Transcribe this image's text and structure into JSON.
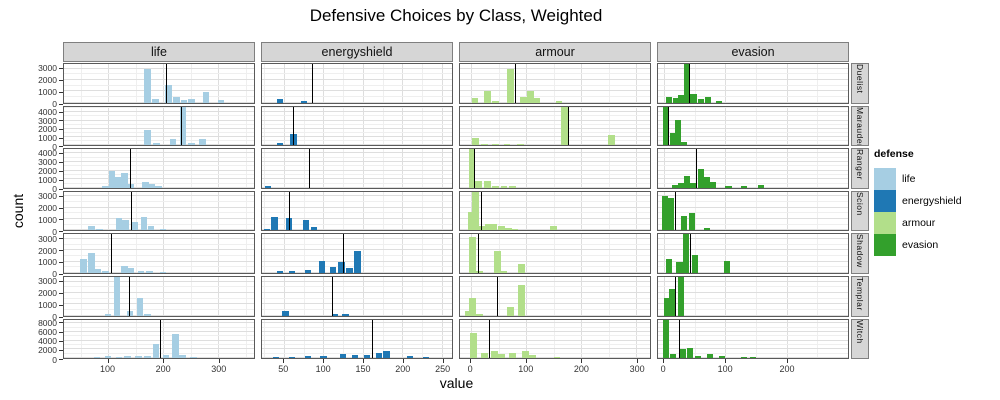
{
  "chart_data": {
    "type": "histogram",
    "title": "Defensive Choices by Class, Weighted",
    "xlabel": "value",
    "ylabel": "count",
    "facet_note": "grid of facets: columns = defense type (shared x scale per column), rows = character class (free y scale per row); vertical black line in each panel marks the weighted mean",
    "grid": "on",
    "legend": {
      "title": "defense",
      "position": "right",
      "items": [
        {
          "label": "life",
          "color": "#a6cee3"
        },
        {
          "label": "energyshield",
          "color": "#1f78b4"
        },
        {
          "label": "armour",
          "color": "#b2df8a"
        },
        {
          "label": "evasion",
          "color": "#33a02c"
        }
      ]
    },
    "colors": {
      "life": "#a6cee3",
      "energyshield": "#1f78b4",
      "armour": "#b2df8a",
      "evasion": "#33a02c"
    },
    "columns": [
      {
        "key": "life",
        "label": "life",
        "domain": [
          20,
          365
        ],
        "ticks": [
          100,
          200,
          300
        ],
        "binwidth": 12
      },
      {
        "key": "energyshield",
        "label": "energyshield",
        "domain": [
          22,
          263
        ],
        "ticks": [
          50,
          100,
          150,
          200,
          250
        ],
        "binwidth": 8
      },
      {
        "key": "armour",
        "label": "armour",
        "domain": [
          -20,
          325
        ],
        "ticks": [
          0,
          100,
          200,
          300
        ],
        "binwidth": 12
      },
      {
        "key": "evasion",
        "label": "evasion",
        "domain": [
          -10,
          300
        ],
        "ticks": [
          0,
          100,
          200
        ],
        "binwidth": 10
      }
    ],
    "rows": [
      {
        "label": "Duelist",
        "ymax": 3400,
        "yticks": [
          0,
          1000,
          2000,
          3000
        ],
        "facets": {
          "life": {
            "mean": 205,
            "bars": [
              [
                172,
                2800
              ],
              [
                186,
                300
              ],
              [
                210,
                1500
              ],
              [
                224,
                450
              ],
              [
                238,
                200
              ],
              [
                252,
                300
              ],
              [
                278,
                850
              ],
              [
                305,
                250
              ]
            ]
          },
          "energyshield": {
            "mean": 85,
            "bars": [
              [
                45,
                280
              ],
              [
                75,
                150
              ]
            ]
          },
          "armour": {
            "mean": 80,
            "bars": [
              [
                7,
                350
              ],
              [
                30,
                950
              ],
              [
                45,
                150
              ],
              [
                72,
                2850
              ],
              [
                95,
                500
              ],
              [
                108,
                1000
              ],
              [
                120,
                400
              ],
              [
                160,
                170
              ]
            ]
          },
          "evasion": {
            "mean": 40,
            "bars": [
              [
                8,
                500
              ],
              [
                20,
                400
              ],
              [
                28,
                650
              ],
              [
                38,
                3300
              ],
              [
                48,
                750
              ],
              [
                60,
                300
              ],
              [
                72,
                500
              ],
              [
                90,
                170
              ]
            ]
          }
        }
      },
      {
        "label": "Marauder",
        "ymax": 4700,
        "yticks": [
          0,
          1000,
          2000,
          3000,
          4000
        ],
        "facets": {
          "life": {
            "mean": 233,
            "bars": [
              [
                172,
                1800
              ],
              [
                188,
                250
              ],
              [
                218,
                700
              ],
              [
                236,
                4600
              ],
              [
                252,
                250
              ],
              [
                272,
                700
              ]
            ]
          },
          "energyshield": {
            "mean": 61,
            "bars": [
              [
                45,
                200
              ],
              [
                62,
                1300
              ]
            ]
          },
          "armour": {
            "mean": 176,
            "bars": [
              [
                8,
                850
              ],
              [
                25,
                150
              ],
              [
                45,
                120
              ],
              [
                65,
                120
              ],
              [
                90,
                100
              ],
              [
                170,
                4400
              ],
              [
                255,
                1150
              ]
            ]
          },
          "evasion": {
            "mean": 6,
            "bars": [
              [
                3,
                4600
              ],
              [
                14,
                1400
              ],
              [
                23,
                2900
              ],
              [
                32,
                400
              ]
            ]
          }
        }
      },
      {
        "label": "Ranger",
        "ymax": 4500,
        "yticks": [
          0,
          1000,
          2000,
          3000,
          4000
        ],
        "facets": {
          "life": {
            "mean": 139,
            "bars": [
              [
                95,
                250
              ],
              [
                107,
                1900
              ],
              [
                118,
                1250
              ],
              [
                130,
                1600
              ],
              [
                142,
                450
              ],
              [
                168,
                650
              ],
              [
                180,
                450
              ],
              [
                192,
                150
              ]
            ]
          },
          "energyshield": {
            "mean": 81,
            "bars": [
              [
                30,
                230
              ]
            ]
          },
          "armour": {
            "mean": 5,
            "bars": [
              [
                2,
                4400
              ],
              [
                14,
                700
              ],
              [
                30,
                800
              ],
              [
                45,
                200
              ],
              [
                60,
                180
              ],
              [
                75,
                150
              ]
            ]
          },
          "evasion": {
            "mean": 52,
            "bars": [
              [
                18,
                350
              ],
              [
                28,
                550
              ],
              [
                38,
                1350
              ],
              [
                48,
                550
              ],
              [
                60,
                2100
              ],
              [
                70,
                1250
              ],
              [
                80,
                650
              ],
              [
                105,
                200
              ],
              [
                130,
                250
              ],
              [
                158,
                300
              ]
            ]
          }
        }
      },
      {
        "label": "Scion",
        "ymax": 3400,
        "yticks": [
          0,
          1000,
          2000,
          3000
        ],
        "facets": {
          "life": {
            "mean": 141,
            "bars": [
              [
                70,
                400
              ],
              [
                85,
                150
              ],
              [
                120,
                1000
              ],
              [
                132,
                850
              ],
              [
                148,
                700
              ],
              [
                165,
                1100
              ],
              [
                178,
                400
              ],
              [
                200,
                100
              ]
            ]
          },
          "energyshield": {
            "mean": 56,
            "bars": [
              [
                28,
                150
              ],
              [
                38,
                1150
              ],
              [
                56,
                1000
              ],
              [
                78,
                850
              ],
              [
                88,
                250
              ]
            ]
          },
          "armour": {
            "mean": 18,
            "bars": [
              [
                0,
                1500
              ],
              [
                8,
                3300
              ],
              [
                20,
                400
              ],
              [
                32,
                500
              ],
              [
                42,
                500
              ],
              [
                55,
                350
              ],
              [
                68,
                200
              ],
              [
                80,
                150
              ],
              [
                150,
                350
              ]
            ]
          },
          "evasion": {
            "mean": 17,
            "bars": [
              [
                2,
                2900
              ],
              [
                11,
                2750
              ],
              [
                32,
                1200
              ],
              [
                45,
                1450
              ],
              [
                70,
                200
              ]
            ]
          }
        }
      },
      {
        "label": "Shadow",
        "ymax": 3400,
        "yticks": [
          0,
          1000,
          2000,
          3000
        ],
        "facets": {
          "life": {
            "mean": 105,
            "bars": [
              [
                55,
                1200
              ],
              [
                70,
                1700
              ],
              [
                82,
                350
              ],
              [
                95,
                150
              ],
              [
                130,
                600
              ],
              [
                142,
                400
              ],
              [
                160,
                200
              ],
              [
                175,
                200
              ],
              [
                200,
                100
              ]
            ]
          },
          "energyshield": {
            "mean": 125,
            "bars": [
              [
                45,
                200
              ],
              [
                60,
                200
              ],
              [
                80,
                250
              ],
              [
                98,
                1000
              ],
              [
                112,
                500
              ],
              [
                123,
                950
              ],
              [
                133,
                400
              ],
              [
                143,
                1850
              ]
            ]
          },
          "armour": {
            "mean": 13,
            "bars": [
              [
                3,
                3050
              ],
              [
                15,
                150
              ],
              [
                48,
                1850
              ],
              [
                60,
                180
              ],
              [
                92,
                750
              ]
            ]
          },
          "evasion": {
            "mean": 43,
            "bars": [
              [
                8,
                1200
              ],
              [
                25,
                950
              ],
              [
                36,
                3400
              ],
              [
                50,
                1500
              ],
              [
                102,
                1000
              ]
            ]
          }
        }
      },
      {
        "label": "Templar",
        "ymax": 3400,
        "yticks": [
          0,
          1000,
          2000,
          3000
        ],
        "facets": {
          "life": {
            "mean": 138,
            "bars": [
              [
                100,
                150
              ],
              [
                116,
                3200
              ],
              [
                140,
                350
              ],
              [
                158,
                1500
              ],
              [
                172,
                150
              ]
            ]
          },
          "energyshield": {
            "mean": 111,
            "bars": [
              [
                52,
                350
              ],
              [
                115,
                150
              ],
              [
                128,
                150
              ]
            ]
          },
          "armour": {
            "mean": 47,
            "bars": [
              [
                -5,
                400
              ],
              [
                3,
                1500
              ],
              [
                15,
                130
              ],
              [
                72,
                680
              ],
              [
                92,
                2550
              ]
            ]
          },
          "evasion": {
            "mean": 17,
            "bars": [
              [
                5,
                1500
              ],
              [
                13,
                2200
              ],
              [
                28,
                3400
              ]
            ]
          }
        }
      },
      {
        "label": "Witch",
        "ymax": 8800,
        "yticks": [
          0,
          2000,
          4000,
          6000,
          8000
        ],
        "facets": {
          "life": {
            "mean": 194,
            "bars": [
              [
                80,
                300
              ],
              [
                100,
                400
              ],
              [
                120,
                350
              ],
              [
                135,
                400
              ],
              [
                155,
                450
              ],
              [
                172,
                500
              ],
              [
                187,
                3100
              ],
              [
                205,
                700
              ],
              [
                222,
                5300
              ],
              [
                235,
                800
              ],
              [
                255,
                350
              ]
            ]
          },
          "energyshield": {
            "mean": 162,
            "bars": [
              [
                40,
                300
              ],
              [
                60,
                350
              ],
              [
                80,
                400
              ],
              [
                100,
                450
              ],
              [
                125,
                900
              ],
              [
                140,
                600
              ],
              [
                155,
                700
              ],
              [
                170,
                1100
              ],
              [
                180,
                1600
              ],
              [
                210,
                400
              ],
              [
                230,
                350
              ]
            ]
          },
          "armour": {
            "mean": 32,
            "bars": [
              [
                4,
                5400
              ],
              [
                25,
                1050
              ],
              [
                43,
                1600
              ],
              [
                55,
                950
              ],
              [
                75,
                1050
              ],
              [
                99,
                1600
              ],
              [
                112,
                600
              ],
              [
                156,
                350
              ]
            ]
          },
          "evasion": {
            "mean": 25,
            "bars": [
              [
                3,
                8700
              ],
              [
                15,
                900
              ],
              [
                30,
                2100
              ],
              [
                42,
                2300
              ],
              [
                55,
                400
              ],
              [
                75,
                950
              ],
              [
                95,
                400
              ],
              [
                130,
                300
              ],
              [
                145,
                300
              ]
            ]
          }
        }
      }
    ]
  }
}
